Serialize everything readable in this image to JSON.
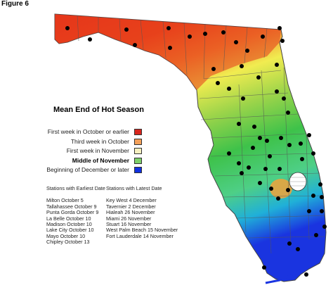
{
  "figure_label": "Figure 6",
  "map_title": "Mean End of Hot Season",
  "legend": [
    {
      "label": "First week in October or earlier",
      "color": "#d8261e",
      "bold": false
    },
    {
      "label": "Third week in October",
      "color": "#f4a05a",
      "bold": false
    },
    {
      "label": "First week in November",
      "color": "#f6f0c0",
      "bold": false
    },
    {
      "label": "Middle of November",
      "color": "#7ed06a",
      "bold": true
    },
    {
      "label": "Beginning of December or later",
      "color": "#1030e0",
      "bold": false
    }
  ],
  "stations_earliest": {
    "header": "Stations with Earliest Date",
    "items": [
      "Milton October 5",
      "Tallahassee October 9",
      "Punta Gorda October 9",
      "La Belle October 10",
      "Madison October 10",
      "Lake City October 10",
      "Mayo October 10",
      "Chipley October 13"
    ]
  },
  "stations_latest": {
    "header": "Stations with Latest Date",
    "items": [
      "Key West 4 December",
      "Tavernier 2 December",
      "Hialeah 26 November",
      "Miami 26 November",
      "Stuart 16 November",
      "West Palm Beach 15 November",
      "Fort Lauderdale 14 November"
    ]
  },
  "colors": {
    "gradient_north": "#e8321a",
    "gradient_mid_north": "#f39030",
    "gradient_central": "#f1ec50",
    "gradient_green": "#3ec24a",
    "gradient_south": "#20b0d8",
    "gradient_keys": "#1a34e0",
    "station_dot": "#000000",
    "county_lines": "#555555"
  },
  "icons": [
    "station-dot-icon",
    "lake-okeechobee-icon"
  ]
}
